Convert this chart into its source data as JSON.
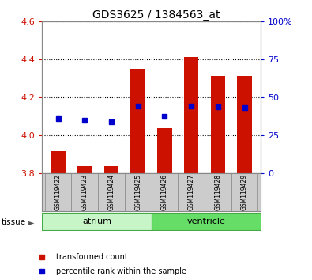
{
  "title": "GDS3625 / 1384563_at",
  "samples": [
    "GSM119422",
    "GSM119423",
    "GSM119424",
    "GSM119425",
    "GSM119426",
    "GSM119427",
    "GSM119428",
    "GSM119429"
  ],
  "groups": [
    "atrium",
    "atrium",
    "atrium",
    "atrium",
    "ventricle",
    "ventricle",
    "ventricle",
    "ventricle"
  ],
  "group_labels": [
    "atrium",
    "ventricle"
  ],
  "bar_bottom": 3.8,
  "bar_tops": [
    3.92,
    3.84,
    3.84,
    4.35,
    4.04,
    4.41,
    4.31,
    4.31
  ],
  "blue_dot_y": [
    4.09,
    4.08,
    4.07,
    4.155,
    4.1,
    4.155,
    4.15,
    4.145
  ],
  "ylim_left": [
    3.8,
    4.6
  ],
  "ylim_right": [
    0,
    100
  ],
  "yticks_left": [
    3.8,
    4.0,
    4.2,
    4.4,
    4.6
  ],
  "yticks_right": [
    0,
    25,
    50,
    75,
    100
  ],
  "ytick_labels_right": [
    "0",
    "25",
    "50",
    "75",
    "100%"
  ],
  "bar_color": "#cc1100",
  "dot_color": "#0000cc",
  "plot_bg": "#ffffff",
  "label_color_left": "#cc1100",
  "label_color_right": "#0000cc",
  "group_colors": {
    "atrium": "#c8f5c8",
    "ventricle": "#66dd66"
  },
  "group_spans": [
    [
      "atrium",
      0,
      4
    ],
    [
      "ventricle",
      4,
      8
    ]
  ]
}
